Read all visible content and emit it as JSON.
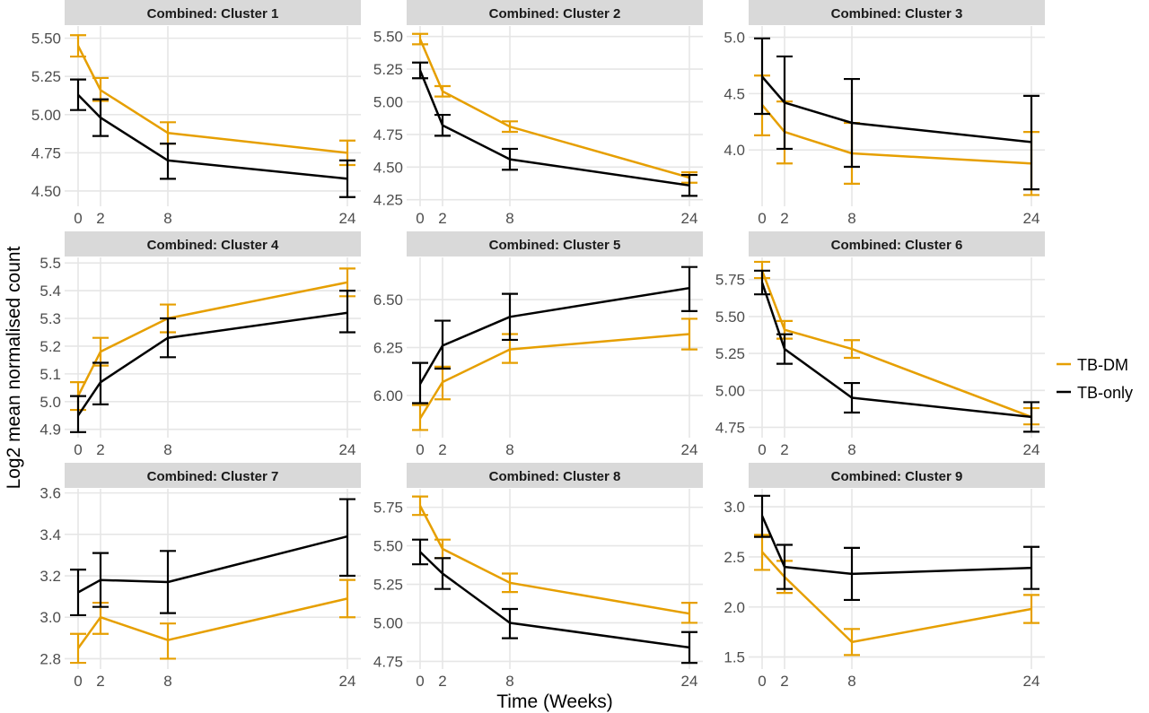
{
  "figure": {
    "xlabel": "Time (Weeks)",
    "ylabel": "Log2 mean normalised count",
    "legend_position": "right"
  },
  "legend": [
    {
      "label": "TB-DM",
      "color": "#E69F00"
    },
    {
      "label": "TB-only",
      "color": "#000000"
    }
  ],
  "chart_data": [
    {
      "type": "line",
      "title": "Combined: Cluster 1",
      "x": [
        0,
        2,
        8,
        24
      ],
      "ylim": [
        4.4,
        5.58
      ],
      "yticks": [
        4.5,
        4.75,
        5.0,
        5.25,
        5.5
      ],
      "yticklabels": [
        "4.50",
        "4.75",
        "5.00",
        "5.25",
        "5.50"
      ],
      "series": [
        {
          "name": "TB-DM",
          "values": [
            5.45,
            5.16,
            4.88,
            4.75
          ],
          "lower": [
            5.38,
            5.09,
            4.81,
            4.67
          ],
          "upper": [
            5.52,
            5.24,
            4.95,
            4.83
          ]
        },
        {
          "name": "TB-only",
          "values": [
            5.13,
            4.98,
            4.7,
            4.58
          ],
          "lower": [
            5.03,
            4.86,
            4.58,
            4.46
          ],
          "upper": [
            5.23,
            5.1,
            4.81,
            4.7
          ]
        }
      ]
    },
    {
      "type": "line",
      "title": "Combined: Cluster 2",
      "x": [
        0,
        2,
        8,
        24
      ],
      "ylim": [
        4.2,
        5.58
      ],
      "yticks": [
        4.25,
        4.5,
        4.75,
        5.0,
        5.25,
        5.5
      ],
      "yticklabels": [
        "4.25",
        "4.50",
        "4.75",
        "5.00",
        "5.25",
        "5.50"
      ],
      "series": [
        {
          "name": "TB-DM",
          "values": [
            5.48,
            5.08,
            4.81,
            4.42
          ],
          "lower": [
            5.44,
            5.04,
            4.77,
            4.38
          ],
          "upper": [
            5.52,
            5.12,
            4.85,
            4.46
          ]
        },
        {
          "name": "TB-only",
          "values": [
            5.24,
            4.82,
            4.56,
            4.36
          ],
          "lower": [
            5.18,
            4.74,
            4.48,
            4.28
          ],
          "upper": [
            5.3,
            4.9,
            4.64,
            4.44
          ]
        }
      ]
    },
    {
      "type": "line",
      "title": "Combined: Cluster 3",
      "x": [
        0,
        2,
        8,
        24
      ],
      "ylim": [
        3.5,
        5.1
      ],
      "yticks": [
        4.0,
        4.5,
        5.0
      ],
      "yticklabels": [
        "4.0",
        "4.5",
        "5.0"
      ],
      "series": [
        {
          "name": "TB-DM",
          "values": [
            4.4,
            4.16,
            3.97,
            3.88
          ],
          "lower": [
            4.13,
            3.88,
            3.7,
            3.6
          ],
          "upper": [
            4.66,
            4.43,
            4.24,
            4.16
          ]
        },
        {
          "name": "TB-only",
          "values": [
            4.65,
            4.42,
            4.24,
            4.07
          ],
          "lower": [
            4.32,
            4.01,
            3.85,
            3.65
          ],
          "upper": [
            4.99,
            4.83,
            4.63,
            4.48
          ]
        }
      ]
    },
    {
      "type": "line",
      "title": "Combined: Cluster 4",
      "x": [
        0,
        2,
        8,
        24
      ],
      "ylim": [
        4.87,
        5.52
      ],
      "yticks": [
        4.9,
        5.0,
        5.1,
        5.2,
        5.3,
        5.4,
        5.5
      ],
      "yticklabels": [
        "4.9",
        "5.0",
        "5.1",
        "5.2",
        "5.3",
        "5.4",
        "5.5"
      ],
      "series": [
        {
          "name": "TB-DM",
          "values": [
            5.02,
            5.18,
            5.3,
            5.43
          ],
          "lower": [
            4.97,
            5.13,
            5.25,
            5.38
          ],
          "upper": [
            5.07,
            5.23,
            5.35,
            5.48
          ]
        },
        {
          "name": "TB-only",
          "values": [
            4.95,
            5.07,
            5.23,
            5.32
          ],
          "lower": [
            4.89,
            4.99,
            5.16,
            5.25
          ],
          "upper": [
            5.02,
            5.14,
            5.3,
            5.4
          ]
        }
      ]
    },
    {
      "type": "line",
      "title": "Combined: Cluster 5",
      "x": [
        0,
        2,
        8,
        24
      ],
      "ylim": [
        5.78,
        6.72
      ],
      "yticks": [
        6.0,
        6.25,
        6.5
      ],
      "yticklabels": [
        "6.00",
        "6.25",
        "6.50"
      ],
      "series": [
        {
          "name": "TB-DM",
          "values": [
            5.88,
            6.07,
            6.24,
            6.32
          ],
          "lower": [
            5.82,
            5.98,
            6.17,
            6.24
          ],
          "upper": [
            5.95,
            6.15,
            6.32,
            6.4
          ]
        },
        {
          "name": "TB-only",
          "values": [
            6.06,
            6.26,
            6.41,
            6.56
          ],
          "lower": [
            5.96,
            6.14,
            6.29,
            6.44
          ],
          "upper": [
            6.17,
            6.39,
            6.53,
            6.67
          ]
        }
      ]
    },
    {
      "type": "line",
      "title": "Combined: Cluster 6",
      "x": [
        0,
        2,
        8,
        24
      ],
      "ylim": [
        4.68,
        5.9
      ],
      "yticks": [
        4.75,
        5.0,
        5.25,
        5.5,
        5.75
      ],
      "yticklabels": [
        "4.75",
        "5.00",
        "5.25",
        "5.50",
        "5.75"
      ],
      "series": [
        {
          "name": "TB-DM",
          "values": [
            5.81,
            5.41,
            5.28,
            4.82
          ],
          "lower": [
            5.76,
            5.35,
            5.22,
            4.77
          ],
          "upper": [
            5.87,
            5.47,
            5.34,
            4.88
          ]
        },
        {
          "name": "TB-only",
          "values": [
            5.73,
            5.28,
            4.95,
            4.82
          ],
          "lower": [
            5.65,
            5.18,
            4.85,
            4.72
          ],
          "upper": [
            5.81,
            5.38,
            5.05,
            4.92
          ]
        }
      ]
    },
    {
      "type": "line",
      "title": "Combined: Cluster 7",
      "x": [
        0,
        2,
        8,
        24
      ],
      "ylim": [
        2.75,
        3.62
      ],
      "yticks": [
        2.8,
        3.0,
        3.2,
        3.4,
        3.6
      ],
      "yticklabels": [
        "2.8",
        "3.0",
        "3.2",
        "3.4",
        "3.6"
      ],
      "series": [
        {
          "name": "TB-DM",
          "values": [
            2.85,
            3.0,
            2.89,
            3.09
          ],
          "lower": [
            2.78,
            2.92,
            2.8,
            3.0
          ],
          "upper": [
            2.92,
            3.07,
            2.97,
            3.18
          ]
        },
        {
          "name": "TB-only",
          "values": [
            3.12,
            3.18,
            3.17,
            3.39
          ],
          "lower": [
            3.01,
            3.05,
            3.02,
            3.2
          ],
          "upper": [
            3.23,
            3.31,
            3.32,
            3.57
          ]
        }
      ]
    },
    {
      "type": "line",
      "title": "Combined: Cluster 8",
      "x": [
        0,
        2,
        8,
        24
      ],
      "ylim": [
        4.7,
        5.87
      ],
      "yticks": [
        4.75,
        5.0,
        5.25,
        5.5,
        5.75
      ],
      "yticklabels": [
        "4.75",
        "5.00",
        "5.25",
        "5.50",
        "5.75"
      ],
      "series": [
        {
          "name": "TB-DM",
          "values": [
            5.76,
            5.48,
            5.26,
            5.06
          ],
          "lower": [
            5.7,
            5.42,
            5.2,
            5.0
          ],
          "upper": [
            5.82,
            5.54,
            5.32,
            5.13
          ]
        },
        {
          "name": "TB-only",
          "values": [
            5.46,
            5.32,
            5.0,
            4.84
          ],
          "lower": [
            5.38,
            5.22,
            4.9,
            4.74
          ],
          "upper": [
            5.54,
            5.42,
            5.09,
            4.94
          ]
        }
      ]
    },
    {
      "type": "line",
      "title": "Combined: Cluster 9",
      "x": [
        0,
        2,
        8,
        24
      ],
      "ylim": [
        1.38,
        3.18
      ],
      "yticks": [
        1.5,
        2.0,
        2.5,
        3.0
      ],
      "yticklabels": [
        "1.5",
        "2.0",
        "2.5",
        "3.0"
      ],
      "series": [
        {
          "name": "TB-DM",
          "values": [
            2.55,
            2.3,
            1.65,
            1.98
          ],
          "lower": [
            2.37,
            2.14,
            1.52,
            1.84
          ],
          "upper": [
            2.72,
            2.46,
            1.78,
            2.12
          ]
        },
        {
          "name": "TB-only",
          "values": [
            2.91,
            2.4,
            2.33,
            2.39
          ],
          "lower": [
            2.7,
            2.18,
            2.07,
            2.18
          ],
          "upper": [
            3.11,
            2.62,
            2.59,
            2.6
          ]
        }
      ]
    }
  ]
}
